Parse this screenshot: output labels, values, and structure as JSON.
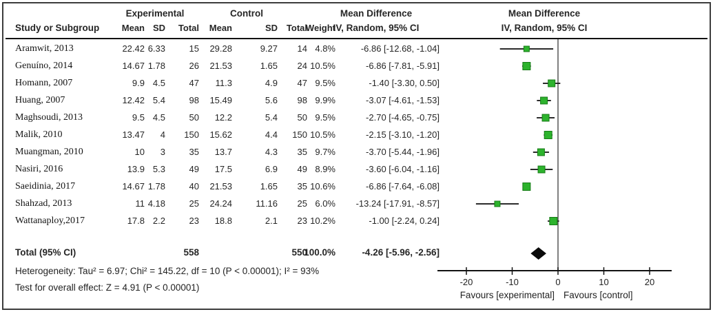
{
  "table": {
    "group_headers": {
      "experimental": "Experimental",
      "control": "Control",
      "md_text_col": "Mean Difference",
      "md_plot_col": "Mean Difference"
    },
    "col_headers": {
      "study": "Study or Subgroup",
      "mean1": "Mean",
      "sd1": "SD",
      "total1": "Total",
      "mean2": "Mean",
      "sd2": "SD",
      "total2": "Total",
      "weight": "Weight",
      "ci_text_col": "IV, Random, 95% CI",
      "ci_plot_col": "IV, Random, 95% CI"
    },
    "rows": [
      {
        "study": "Aramwit, 2013",
        "mean1": "22.42",
        "sd1": "6.33",
        "total1": "15",
        "mean2": "29.28",
        "sd2": "9.27",
        "total2": "14",
        "weight": "4.8%",
        "ci": "-6.86 [-12.68, -1.04]"
      },
      {
        "study": "Genuíno, 2014",
        "mean1": "14.67",
        "sd1": "1.78",
        "total1": "26",
        "mean2": "21.53",
        "sd2": "1.65",
        "total2": "24",
        "weight": "10.5%",
        "ci": "-6.86 [-7.81, -5.91]"
      },
      {
        "study": "Homann, 2007",
        "mean1": "9.9",
        "sd1": "4.5",
        "total1": "47",
        "mean2": "11.3",
        "sd2": "4.9",
        "total2": "47",
        "weight": "9.5%",
        "ci": "-1.40 [-3.30, 0.50]"
      },
      {
        "study": "Huang, 2007",
        "mean1": "12.42",
        "sd1": "5.4",
        "total1": "98",
        "mean2": "15.49",
        "sd2": "5.6",
        "total2": "98",
        "weight": "9.9%",
        "ci": "-3.07 [-4.61, -1.53]"
      },
      {
        "study": "Maghsoudi, 2013",
        "mean1": "9.5",
        "sd1": "4.5",
        "total1": "50",
        "mean2": "12.2",
        "sd2": "5.4",
        "total2": "50",
        "weight": "9.5%",
        "ci": "-2.70 [-4.65, -0.75]"
      },
      {
        "study": "Malik, 2010",
        "mean1": "13.47",
        "sd1": "4",
        "total1": "150",
        "mean2": "15.62",
        "sd2": "4.4",
        "total2": "150",
        "weight": "10.5%",
        "ci": "-2.15 [-3.10, -1.20]"
      },
      {
        "study": "Muangman, 2010",
        "mean1": "10",
        "sd1": "3",
        "total1": "35",
        "mean2": "13.7",
        "sd2": "4.3",
        "total2": "35",
        "weight": "9.7%",
        "ci": "-3.70 [-5.44, -1.96]"
      },
      {
        "study": "Nasiri, 2016",
        "mean1": "13.9",
        "sd1": "5.3",
        "total1": "49",
        "mean2": "17.5",
        "sd2": "6.9",
        "total2": "49",
        "weight": "8.9%",
        "ci": "-3.60 [-6.04, -1.16]"
      },
      {
        "study": "Saeidinia, 2017",
        "mean1": "14.67",
        "sd1": "1.78",
        "total1": "40",
        "mean2": "21.53",
        "sd2": "1.65",
        "total2": "35",
        "weight": "10.6%",
        "ci": "-6.86 [-7.64, -6.08]"
      },
      {
        "study": "Shahzad, 2013",
        "mean1": "11",
        "sd1": "4.18",
        "total1": "25",
        "mean2": "24.24",
        "sd2": "11.16",
        "total2": "25",
        "weight": "6.0%",
        "ci": "-13.24 [-17.91, -8.57]"
      },
      {
        "study": "Wattanaploy,2017",
        "mean1": "17.8",
        "sd1": "2.2",
        "total1": "23",
        "mean2": "18.8",
        "sd2": "2.1",
        "total2": "23",
        "weight": "10.2%",
        "ci": "-1.00 [-2.24, 0.24]"
      }
    ],
    "total_row": {
      "label": "Total (95% CI)",
      "total1": "558",
      "total2": "550",
      "weight": "100.0%",
      "ci": "-4.26 [-5.96, -2.56]"
    },
    "heterogeneity": "Heterogeneity: Tau² = 6.97; Chi² = 145.22, df = 10 (P < 0.00001); I² = 93%",
    "overall_effect": "Test for overall effect: Z = 4.91 (P < 0.00001)"
  },
  "plot": {
    "favours_left": "Favours [experimental]",
    "favours_right": "Favours [control]",
    "colors": {
      "square_fill": "#2db32d",
      "square_stroke": "#157a15",
      "ci_line": "#2b2b2b",
      "diamond": "#0a0a0a",
      "axis": "#111111",
      "zero_line": "#555555",
      "text": "#222222"
    }
  },
  "chart_data": {
    "type": "forest",
    "title": "Mean Difference, IV, Random, 95% CI",
    "effect_measure": "Mean Difference",
    "model": "IV, Random, 95% CI",
    "studies": [
      {
        "name": "Aramwit, 2013",
        "md": -6.86,
        "lo": -12.68,
        "hi": -1.04,
        "weight_pct": 4.8
      },
      {
        "name": "Genuíno, 2014",
        "md": -6.86,
        "lo": -7.81,
        "hi": -5.91,
        "weight_pct": 10.5
      },
      {
        "name": "Homann, 2007",
        "md": -1.4,
        "lo": -3.3,
        "hi": 0.5,
        "weight_pct": 9.5
      },
      {
        "name": "Huang, 2007",
        "md": -3.07,
        "lo": -4.61,
        "hi": -1.53,
        "weight_pct": 9.9
      },
      {
        "name": "Maghsoudi, 2013",
        "md": -2.7,
        "lo": -4.65,
        "hi": -0.75,
        "weight_pct": 9.5
      },
      {
        "name": "Malik, 2010",
        "md": -2.15,
        "lo": -3.1,
        "hi": -1.2,
        "weight_pct": 10.5
      },
      {
        "name": "Muangman, 2010",
        "md": -3.7,
        "lo": -5.44,
        "hi": -1.96,
        "weight_pct": 9.7
      },
      {
        "name": "Nasiri, 2016",
        "md": -3.6,
        "lo": -6.04,
        "hi": -1.16,
        "weight_pct": 8.9
      },
      {
        "name": "Saeidinia, 2017",
        "md": -6.86,
        "lo": -7.64,
        "hi": -6.08,
        "weight_pct": 10.6
      },
      {
        "name": "Shahzad, 2013",
        "md": -13.24,
        "lo": -17.91,
        "hi": -8.57,
        "weight_pct": 6.0
      },
      {
        "name": "Wattanaploy,2017",
        "md": -1.0,
        "lo": -2.24,
        "hi": 0.24,
        "weight_pct": 10.2
      }
    ],
    "total": {
      "label": "Total (95% CI)",
      "md": -4.26,
      "lo": -5.96,
      "hi": -2.56,
      "weight_pct": 100.0
    },
    "x_axis": {
      "ticks": [
        -20,
        -10,
        0,
        10,
        20
      ],
      "range": [
        -26,
        25
      ],
      "label_left": "Favours [experimental]",
      "label_right": "Favours [control]"
    },
    "heterogeneity": {
      "tau2": 6.97,
      "chi2": 145.22,
      "df": 10,
      "p": "< 0.00001",
      "i2_pct": 93
    },
    "overall_effect": {
      "z": 4.91,
      "p": "< 0.00001"
    }
  }
}
